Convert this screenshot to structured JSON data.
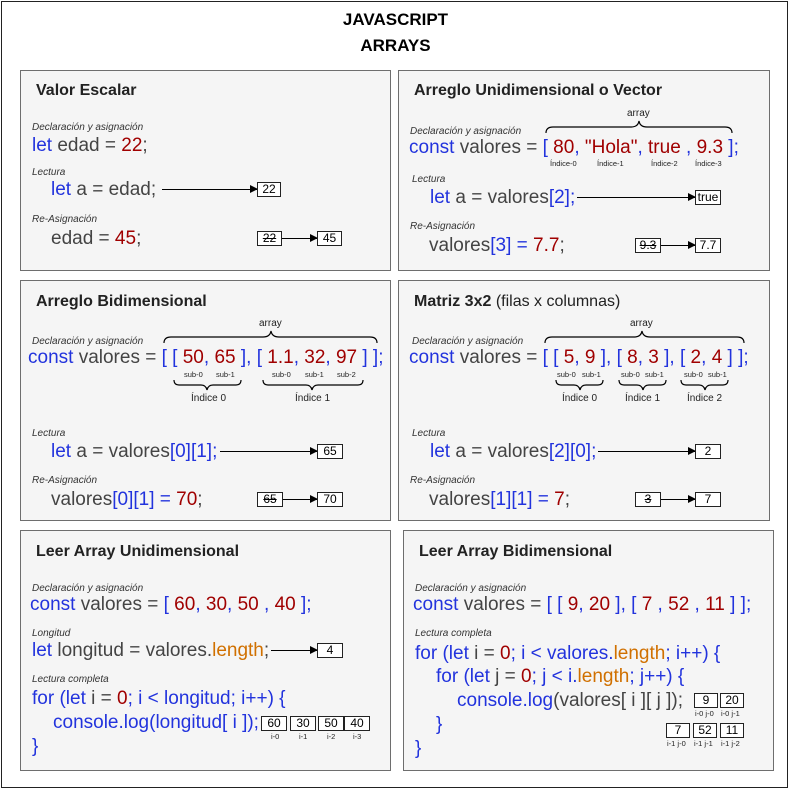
{
  "title": {
    "line1": "JAVASCRIPT",
    "line2": "ARRAYS"
  },
  "labels": {
    "decl": "Declaración y asignación",
    "lectura": "Lectura",
    "reasig": "Re-Asignación",
    "longitud": "Longitud",
    "lectura_completa": "Lectura completa",
    "array": "array"
  },
  "escalar": {
    "title": "Valor Escalar",
    "decl": {
      "kw": "let",
      "name": " edad = ",
      "value": "22",
      "end": ";"
    },
    "read": {
      "kw": "let",
      "mid": " a = edad;"
    },
    "read_result": "22",
    "reassign": {
      "pre": "edad = ",
      "value": "45",
      "end": ";"
    },
    "old_value": "22",
    "new_value": "45"
  },
  "vector": {
    "title": "Arreglo Unidimensional o Vector",
    "decl": {
      "kw": "const",
      "name": " valores = ",
      "open": "[ ",
      "v1": "80",
      "c1": ", ",
      "v2": "\"Hola\"",
      "c2": ", ",
      "v3": "true",
      "c3": " , ",
      "v4": "9.3",
      "close": " ];"
    },
    "indices": [
      "Índice-0",
      "Índice-1",
      "Índice-2",
      "Índice-3"
    ],
    "read": {
      "kw": "let",
      "mid": " a = valores",
      "idx": "[2];"
    },
    "read_result": "true",
    "reassign": {
      "pre": "valores",
      "idx": "[3] = ",
      "value": "7.7",
      "end": ";"
    },
    "old_value": "9.3",
    "new_value": "7.7"
  },
  "bidim": {
    "title": "Arreglo Bidimensional",
    "decl": {
      "kw": "const",
      "name": " valores = ",
      "o1": "[ [ ",
      "a": "50",
      "c1": ", ",
      "b": "65",
      "o2": " ], [ ",
      "c": "1.1",
      "c2": ", ",
      "d": "32",
      "c3": ", ",
      "e": "97",
      "close": " ] ];"
    },
    "subs": [
      "sub-0",
      "sub-1",
      "sub-0",
      "sub-1",
      "sub-2"
    ],
    "rows": [
      "Índice 0",
      "Índice 1"
    ],
    "read": {
      "kw": "let",
      "mid": " a = valores",
      "idx": "[0][1];"
    },
    "read_result": "65",
    "reassign": {
      "pre": "valores",
      "idx": "[0][1] = ",
      "value": "70",
      "end": ";"
    },
    "old_value": "65",
    "new_value": "70"
  },
  "matriz": {
    "title": "Matriz 3x2",
    "subtitle": " (filas x columnas)",
    "decl": {
      "kw": "const",
      "name": " valores = ",
      "o1": "[ [ ",
      "a": "5",
      "c1": ", ",
      "b": "9",
      "o2": " ], [ ",
      "c": "8",
      "c2": ", ",
      "d": "3",
      "o3": " ], [ ",
      "e": "2",
      "c3": ", ",
      "f": "4",
      "close": " ] ];"
    },
    "subs": [
      "sub-0",
      "sub-1",
      "sub-0",
      "sub-1",
      "sub-0",
      "sub-1"
    ],
    "rows": [
      "Índice 0",
      "Índice 1",
      "Índice 2"
    ],
    "read": {
      "kw": "let",
      "mid": " a = valores",
      "idx": "[2][0];"
    },
    "read_result": "2",
    "reassign": {
      "pre": "valores",
      "idx": "[1][1] = ",
      "value": "7",
      "end": ";"
    },
    "old_value": "3",
    "new_value": "7"
  },
  "leer_uni": {
    "title": "Leer Array Unidimensional",
    "decl": {
      "kw": "const",
      "name": " valores = ",
      "open": "[ ",
      "v1": "60",
      "c1": ", ",
      "v2": "30",
      "c2": ", ",
      "v3": "50",
      "c3": " , ",
      "v4": "40",
      "close": " ];"
    },
    "len": {
      "kw": "let",
      "mid": " longitud = valores.",
      "prop": "length",
      "end": ";"
    },
    "len_result": "4",
    "loop1": {
      "kw": "for",
      "a": " (",
      "kw2": "let",
      "b": " i = ",
      "n": "0",
      "c": "; i < longitud; i++) {"
    },
    "loop2": {
      "kw": "console.log",
      "a": "(longitud[ i ]);"
    },
    "loop3": "}",
    "out_values": [
      "60",
      "30",
      "50",
      "40"
    ],
    "out_labels": [
      "i-0",
      "i-1",
      "i-2",
      "i-3"
    ]
  },
  "leer_bi": {
    "title": "Leer Array Bidimensional",
    "decl": {
      "kw": "const",
      "name": " valores = ",
      "o1": "[ [ ",
      "a": "9",
      "c1": ", ",
      "b": "20",
      "o2": " ], [ ",
      "c": "7",
      "c2": " , ",
      "d": "52",
      "c3": " , ",
      "e": "11",
      "close": " ] ];"
    },
    "loop1": {
      "kw": "for",
      "a": " (",
      "kw2": "let",
      "b": " i = ",
      "n": "0",
      "c": "; i < valores.",
      "prop": "length",
      "d": "; i++) {"
    },
    "loop2": {
      "kw": "for",
      "a": " (",
      "kw2": "let",
      "b": " j = ",
      "n": "0",
      "c": "; j < i.",
      "prop": "length",
      "d": "; j++) {"
    },
    "loop3": {
      "kw": "console.log",
      "a": "(valores[ i ][ j ]);"
    },
    "close_inner": "}",
    "close_outer": "}",
    "row0_values": [
      "9",
      "20"
    ],
    "row0_labels": [
      "i-0 j-0",
      "i-0 j-1"
    ],
    "row1_values": [
      "7",
      "52",
      "11"
    ],
    "row1_labels": [
      "i-1 j-0",
      "i-1 j-1",
      "i-1 j-2"
    ]
  }
}
